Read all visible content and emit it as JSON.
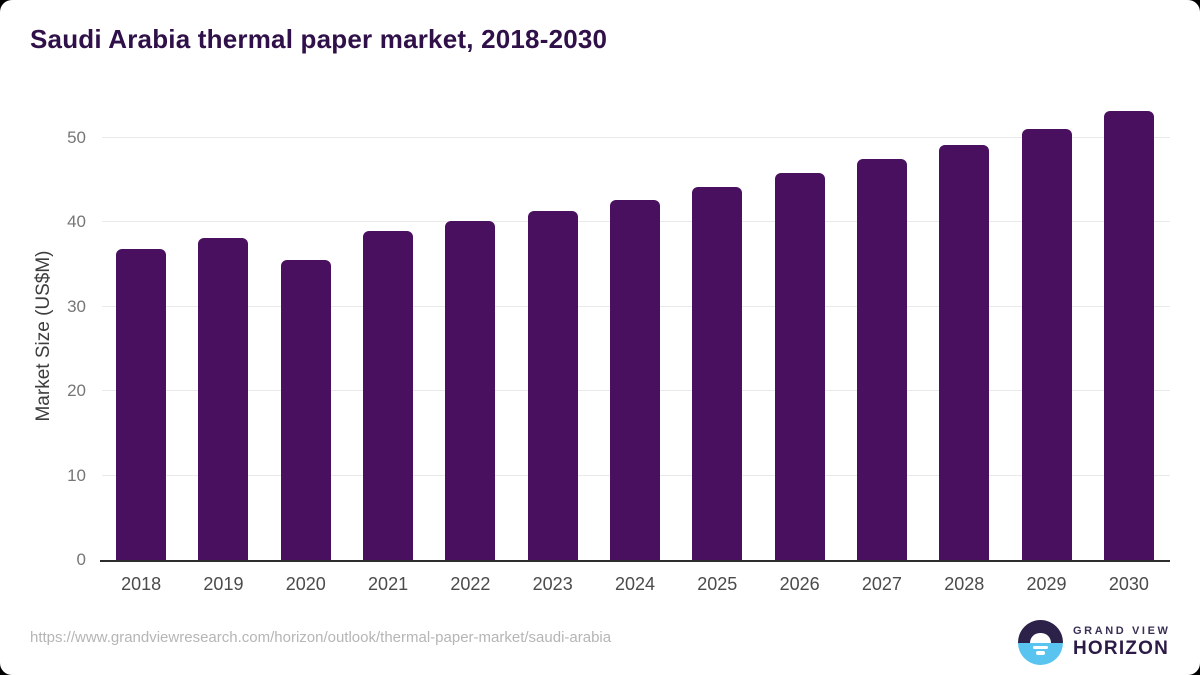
{
  "page": {
    "title": "Saudi Arabia thermal paper market, 2018-2030",
    "source_url": "https://www.grandviewresearch.com/horizon/outlook/thermal-paper-market/saudi-arabia"
  },
  "logo": {
    "brand_line1": "GRAND VIEW",
    "brand_line2": "HORIZON"
  },
  "chart_data": {
    "type": "bar",
    "title": "Saudi Arabia thermal paper market, 2018-2030",
    "categories": [
      "2018",
      "2019",
      "2020",
      "2021",
      "2022",
      "2023",
      "2024",
      "2025",
      "2026",
      "2027",
      "2028",
      "2029",
      "2030"
    ],
    "values": [
      36.9,
      38.2,
      35.5,
      39.0,
      40.2,
      41.4,
      42.7,
      44.2,
      45.8,
      47.5,
      49.2,
      51.1,
      53.2
    ],
    "xlabel": "",
    "ylabel": "Market Size (US$M)",
    "ylim": [
      0,
      54.5
    ],
    "yticks": [
      0,
      10,
      20,
      30,
      40,
      50
    ],
    "grid": true,
    "legend": false,
    "bar_color": "#4a1060",
    "title_color": "#2f1048",
    "logo_blue": "#59c4f0",
    "logo_navy": "#2c2148"
  }
}
